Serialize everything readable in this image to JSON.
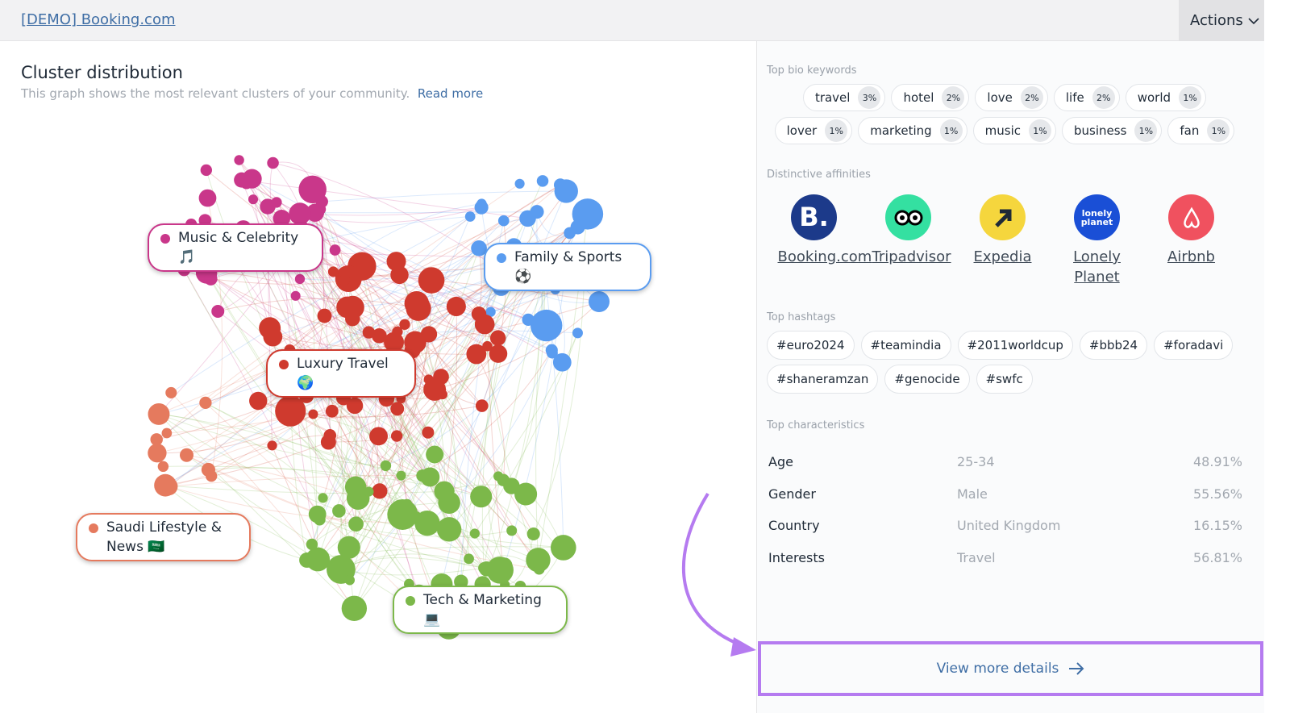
{
  "header": {
    "title": "[DEMO] Booking.com",
    "actions": "Actions"
  },
  "cluster": {
    "title": "Cluster distribution",
    "subtitle": "This graph shows the most relevant clusters of your community.",
    "read_more": "Read more",
    "clusters": [
      {
        "label": "Music & Celebrity 🎵"
      },
      {
        "label": "Family & Sports ⚽"
      },
      {
        "label": "Luxury Travel 🌍"
      },
      {
        "label": "Saudi Lifestyle & News 🇸🇦"
      },
      {
        "label": "Tech & Marketing 💻"
      }
    ]
  },
  "bio_keywords": {
    "title": "Top bio keywords",
    "items": [
      {
        "keyword": "travel",
        "share": "3%"
      },
      {
        "keyword": "hotel",
        "share": "2%"
      },
      {
        "keyword": "love",
        "share": "2%"
      },
      {
        "keyword": "life",
        "share": "2%"
      },
      {
        "keyword": "world",
        "share": "1%"
      },
      {
        "keyword": "lover",
        "share": "1%"
      },
      {
        "keyword": "marketing",
        "share": "1%"
      },
      {
        "keyword": "music",
        "share": "1%"
      },
      {
        "keyword": "business",
        "share": "1%"
      },
      {
        "keyword": "fan",
        "share": "1%"
      }
    ]
  },
  "affinities": {
    "title": "Distinctive affinities",
    "items": [
      {
        "name": "Booking.com",
        "logo_text": "B."
      },
      {
        "name": "Tripadvisor"
      },
      {
        "name": "Expedia"
      },
      {
        "name": "Lonely Planet",
        "logo_text": "lonely planet"
      },
      {
        "name": "Airbnb"
      }
    ]
  },
  "hashtags": {
    "title": "Top hashtags",
    "items": [
      "#euro2024",
      "#teamindia",
      "#2011worldcup",
      "#bbb24",
      "#foradavi",
      "#shaneramzan",
      "#genocide",
      "#swfc"
    ]
  },
  "characteristics": {
    "title": "Top characteristics",
    "rows": [
      [
        "Age",
        "25-34",
        "48.91%"
      ],
      [
        "Gender",
        "Male",
        "55.56%"
      ],
      [
        "Country",
        "United Kingdom",
        "16.15%"
      ],
      [
        "Interests",
        "Travel",
        "56.81%"
      ]
    ]
  },
  "footer": {
    "view_more": "View more details"
  }
}
